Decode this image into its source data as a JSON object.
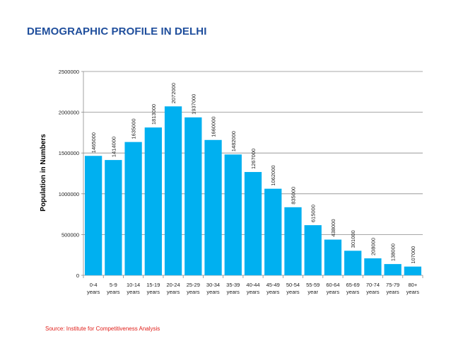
{
  "title": "DEMOGRAPHIC PROFILE IN DELHI",
  "source": "Source: Institute for Competitiveness Analysis",
  "colors": {
    "bar": "#00b0f0",
    "title": "#1f4e9c",
    "source": "#e0201b",
    "grid": "#8c8c8c"
  },
  "chart_data": {
    "type": "bar",
    "ylabel": "Population in Numbers",
    "xlabel": "",
    "ylim": [
      0,
      2500000
    ],
    "yticks": [
      0,
      500000,
      1000000,
      1500000,
      2000000,
      2500000
    ],
    "grid": true,
    "categories": [
      [
        "0-4",
        "years"
      ],
      [
        "5-9",
        "years"
      ],
      [
        "10-14",
        "years"
      ],
      [
        "15-19",
        "years"
      ],
      [
        "20-24",
        "years"
      ],
      [
        "25-29",
        "years"
      ],
      [
        "30-34",
        "years"
      ],
      [
        "35-39",
        "years"
      ],
      [
        "40-44",
        "years"
      ],
      [
        "45-49",
        "years"
      ],
      [
        "50-54",
        "years"
      ],
      [
        "55-59",
        "year"
      ],
      [
        "60-64",
        "years"
      ],
      [
        "65-69",
        "years"
      ],
      [
        "70-74",
        "years"
      ],
      [
        "75-79",
        "years"
      ],
      [
        "80+",
        "years"
      ]
    ],
    "values": [
      1465000,
      1414000,
      1635000,
      1813000,
      2072000,
      1937000,
      1660000,
      1482000,
      1267000,
      1062000,
      835000,
      615000,
      438000,
      301000,
      208000,
      138000,
      107000
    ]
  }
}
